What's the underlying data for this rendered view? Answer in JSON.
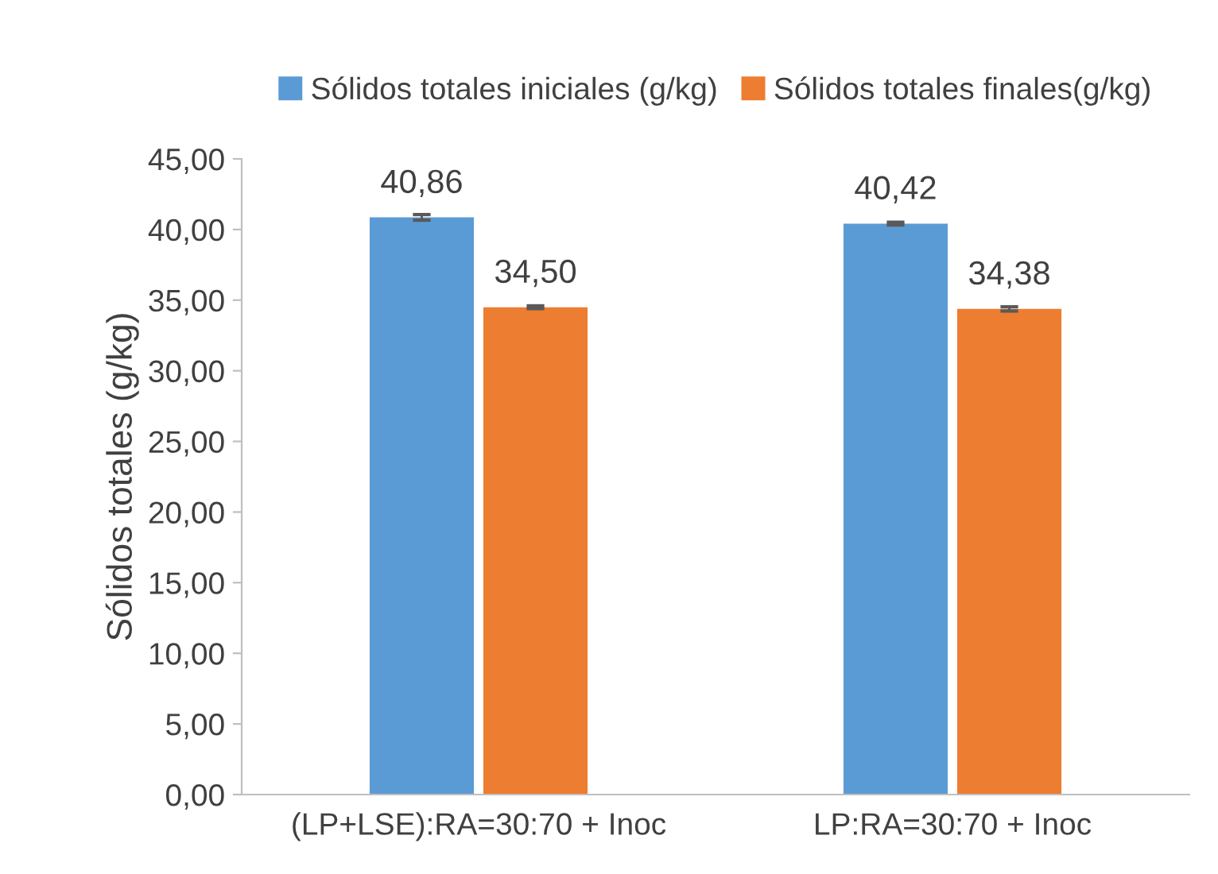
{
  "chart_data": {
    "type": "bar",
    "ylabel": "Sólidos totales (g/kg)",
    "categories": [
      "(LP+LSE):RA=30:70 + Inoc",
      "LP:RA=30:70 + Inoc"
    ],
    "series": [
      {
        "name": "Sólidos totales iniciales (g/kg)",
        "color": "#5b9bd5",
        "values": [
          40.86,
          40.42
        ],
        "errors": [
          0.2,
          0.1
        ],
        "value_labels": [
          "40,86",
          "40,42"
        ]
      },
      {
        "name": "Sólidos totales finales(g/kg)",
        "color": "#ed7d31",
        "values": [
          34.5,
          34.38
        ],
        "errors": [
          0.1,
          0.15
        ],
        "value_labels": [
          "34,50",
          "34,38"
        ]
      }
    ],
    "ylim": [
      0,
      45
    ],
    "yticks": [
      {
        "value": 0,
        "label": "0,00"
      },
      {
        "value": 5,
        "label": "5,00"
      },
      {
        "value": 10,
        "label": "10,00"
      },
      {
        "value": 15,
        "label": "15,00"
      },
      {
        "value": 20,
        "label": "20,00"
      },
      {
        "value": 25,
        "label": "25,00"
      },
      {
        "value": 30,
        "label": "30,00"
      },
      {
        "value": 35,
        "label": "35,00"
      },
      {
        "value": 40,
        "label": "40,00"
      },
      {
        "value": 45,
        "label": "45,00"
      }
    ],
    "grid": false,
    "legend": "top"
  }
}
